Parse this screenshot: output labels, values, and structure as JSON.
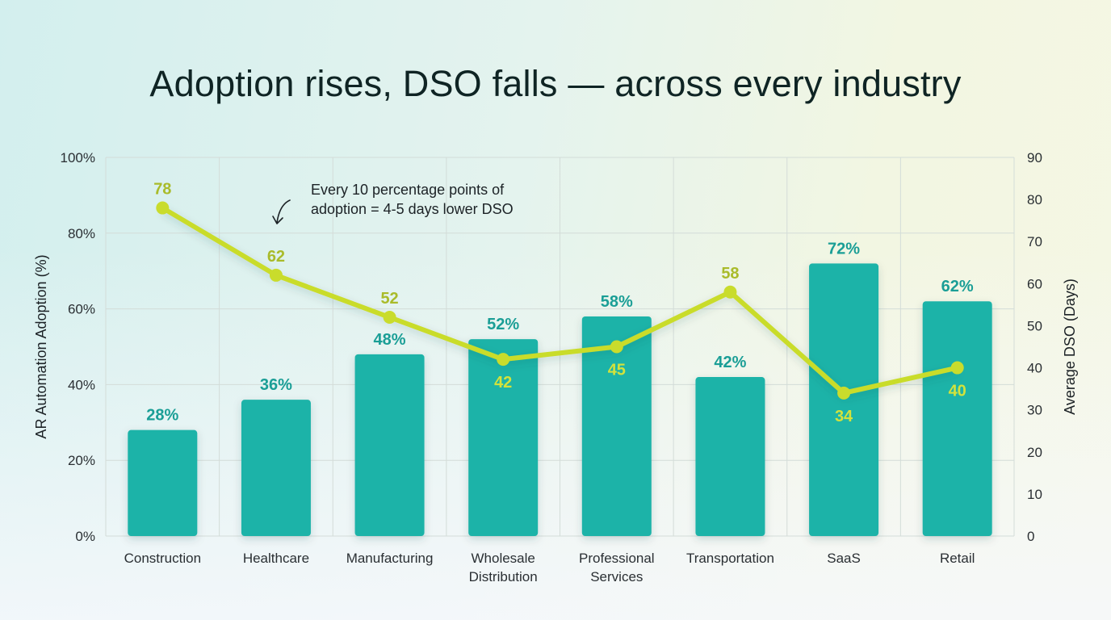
{
  "chart_data": {
    "type": "bar+line",
    "title": "Adoption rises, DSO falls — across every industry",
    "categories": [
      "Construction",
      "Healthcare",
      "Manufacturing",
      "Wholesale Distribution",
      "Professional Services",
      "Transportation",
      "SaaS",
      "Retail"
    ],
    "category_lines": [
      [
        "Construction"
      ],
      [
        "Healthcare"
      ],
      [
        "Manufacturing"
      ],
      [
        "Wholesale",
        "Distribution"
      ],
      [
        "Professional",
        "Services"
      ],
      [
        "Transportation"
      ],
      [
        "SaaS"
      ],
      [
        "Retail"
      ]
    ],
    "series": [
      {
        "name": "AR Automation Adoption (%)",
        "type": "bar",
        "axis": "left",
        "values": [
          28,
          36,
          48,
          52,
          58,
          42,
          72,
          62
        ],
        "labels": [
          "28%",
          "36%",
          "48%",
          "52%",
          "58%",
          "42%",
          "72%",
          "62%"
        ],
        "color": "#1fb3a8"
      },
      {
        "name": "Average DSO (Days)",
        "type": "line",
        "axis": "right",
        "values": [
          78,
          62,
          52,
          42,
          45,
          58,
          34,
          40
        ],
        "labels": [
          "78",
          "62",
          "52",
          "42",
          "45",
          "58",
          "34",
          "40"
        ],
        "color": "#c9dc2c"
      }
    ],
    "ylabel_left": "AR Automation Adoption (%)",
    "ylabel_right": "Average DSO (Days)",
    "ylim_left": [
      0,
      100
    ],
    "ylim_right": [
      0,
      90
    ],
    "yticks_left": [
      "0%",
      "20%",
      "40%",
      "60%",
      "80%",
      "100%"
    ],
    "yticks_right": [
      "0",
      "10",
      "20",
      "30",
      "40",
      "50",
      "60",
      "70",
      "80",
      "90"
    ],
    "grid": true,
    "annotation": [
      "Every 10 percentage points of",
      "adoption = 4-5 days lower DSO"
    ],
    "colors": {
      "bar": "#1fb3a8",
      "bar_label": "#1a9e96",
      "line": "#c9dc2c",
      "line_label_above": "#a9bb2a",
      "line_label_below": "#d2e23c",
      "grid": "#d3dcd8"
    }
  }
}
